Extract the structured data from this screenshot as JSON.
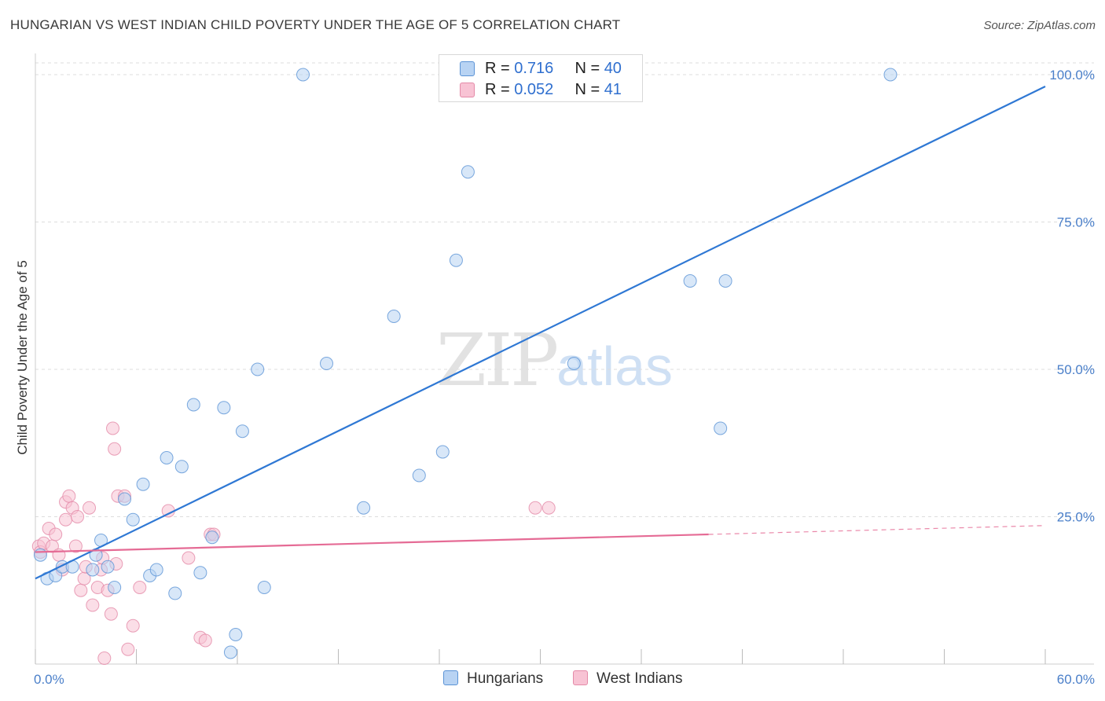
{
  "title": "HUNGARIAN VS WEST INDIAN CHILD POVERTY UNDER THE AGE OF 5 CORRELATION CHART",
  "source": "Source: ZipAtlas.com",
  "watermark": {
    "zip": "ZIP",
    "atlas": "atlas"
  },
  "legend_top": {
    "rows": [
      {
        "r_label": "R = ",
        "r_value": "0.716",
        "n_label": "N = ",
        "n_value": "40"
      },
      {
        "r_label": "R = ",
        "r_value": "0.052",
        "n_label": "N = ",
        "n_value": "41"
      }
    ]
  },
  "legend_bottom": [
    "Hungarians",
    "West Indians"
  ],
  "colors": {
    "hungarians_fill": "#b8d3f3",
    "hungarians_stroke": "#5b93d6",
    "hungarians_line": "#2f78d4",
    "westindians_fill": "#f8c3d4",
    "westindians_stroke": "#e48aa8",
    "westindians_line": "#e56b95",
    "tick": "#4a7fc9",
    "grid": "#dddddd"
  },
  "chart_data": {
    "type": "scatter",
    "ylabel": "Child Poverty Under the Age of 5",
    "xlabel": "",
    "x_tick_labels": [
      "0.0%",
      "60.0%"
    ],
    "y_tick_labels": [
      "25.0%",
      "50.0%",
      "75.0%",
      "100.0%"
    ],
    "y_ticks": [
      25,
      50,
      75,
      100
    ],
    "xlim": [
      0,
      60
    ],
    "ylim": [
      0,
      102
    ],
    "grid": true,
    "series": [
      {
        "name": "Hungarians",
        "r": 0.716,
        "n": 40,
        "trend": {
          "x": [
            0,
            60
          ],
          "y": [
            14.5,
            98
          ]
        },
        "points": [
          [
            0.3,
            18.5
          ],
          [
            0.7,
            14.5
          ],
          [
            1.2,
            15
          ],
          [
            1.6,
            16.5
          ],
          [
            2.2,
            16.5
          ],
          [
            3.4,
            16
          ],
          [
            3.6,
            18.5
          ],
          [
            3.9,
            21
          ],
          [
            4.3,
            16.5
          ],
          [
            4.7,
            13
          ],
          [
            5.3,
            28
          ],
          [
            5.8,
            24.5
          ],
          [
            6.4,
            30.5
          ],
          [
            6.8,
            15
          ],
          [
            7.2,
            16
          ],
          [
            7.8,
            35
          ],
          [
            8.3,
            12
          ],
          [
            8.7,
            33.5
          ],
          [
            9.4,
            44
          ],
          [
            9.8,
            15.5
          ],
          [
            10.5,
            21.5
          ],
          [
            11.2,
            43.5
          ],
          [
            11.6,
            2
          ],
          [
            11.9,
            5
          ],
          [
            12.3,
            39.5
          ],
          [
            13.2,
            50
          ],
          [
            13.6,
            13
          ],
          [
            15.9,
            100
          ],
          [
            17.3,
            51
          ],
          [
            19.5,
            26.5
          ],
          [
            21.3,
            59
          ],
          [
            22.8,
            32
          ],
          [
            24.2,
            36
          ],
          [
            25.0,
            68.5
          ],
          [
            25.7,
            83.5
          ],
          [
            32.0,
            51
          ],
          [
            38.9,
            65
          ],
          [
            40.7,
            40
          ],
          [
            41.0,
            65
          ],
          [
            50.8,
            100
          ]
        ]
      },
      {
        "name": "West Indians",
        "r": 0.052,
        "n": 41,
        "trend": {
          "x": [
            0,
            40
          ],
          "y": [
            19,
            22
          ]
        },
        "trend_extension": {
          "x": [
            40,
            60
          ],
          "y": [
            22,
            23.5
          ]
        },
        "points": [
          [
            0.2,
            20
          ],
          [
            0.3,
            19
          ],
          [
            0.5,
            20.5
          ],
          [
            0.8,
            23
          ],
          [
            1.0,
            20
          ],
          [
            1.2,
            22
          ],
          [
            1.4,
            18.5
          ],
          [
            1.6,
            16
          ],
          [
            1.8,
            24.5
          ],
          [
            1.8,
            27.5
          ],
          [
            2.0,
            28.5
          ],
          [
            2.2,
            26.5
          ],
          [
            2.4,
            20
          ],
          [
            2.5,
            25
          ],
          [
            2.7,
            12.5
          ],
          [
            2.9,
            14.5
          ],
          [
            3.0,
            16.5
          ],
          [
            3.2,
            26.5
          ],
          [
            3.4,
            10
          ],
          [
            3.7,
            13
          ],
          [
            3.9,
            16
          ],
          [
            4.0,
            18
          ],
          [
            4.1,
            1
          ],
          [
            4.3,
            12.5
          ],
          [
            4.5,
            8.5
          ],
          [
            4.6,
            40
          ],
          [
            4.7,
            36.5
          ],
          [
            4.8,
            17
          ],
          [
            4.9,
            28.5
          ],
          [
            5.3,
            28.5
          ],
          [
            5.5,
            2.5
          ],
          [
            5.8,
            6.5
          ],
          [
            6.2,
            13
          ],
          [
            7.9,
            26
          ],
          [
            9.1,
            18
          ],
          [
            9.8,
            4.5
          ],
          [
            10.1,
            4
          ],
          [
            10.4,
            22
          ],
          [
            10.6,
            22
          ],
          [
            29.7,
            26.5
          ],
          [
            30.5,
            26.5
          ]
        ]
      }
    ]
  }
}
